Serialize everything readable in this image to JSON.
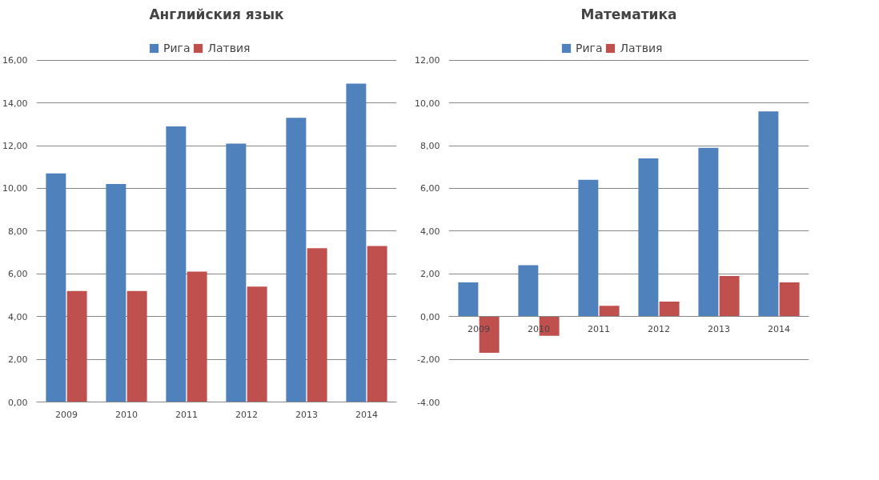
{
  "chart_data": [
    {
      "type": "bar",
      "title": "Английския язык",
      "categories": [
        "2009",
        "2010",
        "2011",
        "2012",
        "2013",
        "2014"
      ],
      "series": [
        {
          "name": "Рига",
          "color": "#4f81bd",
          "values": [
            10.7,
            10.2,
            12.9,
            12.1,
            13.3,
            14.9
          ]
        },
        {
          "name": "Латвия",
          "color": "#c0504d",
          "values": [
            5.2,
            5.2,
            6.1,
            5.4,
            7.2,
            7.3
          ]
        }
      ],
      "ylim": [
        0,
        16
      ],
      "yticks": [
        {
          "value": 0,
          "label": "0,00"
        },
        {
          "value": 2,
          "label": "2,00"
        },
        {
          "value": 4,
          "label": "4,00"
        },
        {
          "value": 6,
          "label": "6,00"
        },
        {
          "value": 8,
          "label": "8,00"
        },
        {
          "value": 10,
          "label": "10,00"
        },
        {
          "value": 12,
          "label": "12,00"
        },
        {
          "value": 14,
          "label": "14,00"
        },
        {
          "value": 16,
          "label": "16,00"
        }
      ],
      "grid": "y",
      "legend": "top"
    },
    {
      "type": "bar",
      "title": "Математика",
      "categories": [
        "2009",
        "2010",
        "2011",
        "2012",
        "2013",
        "2014"
      ],
      "series": [
        {
          "name": "Рига",
          "color": "#4f81bd",
          "values": [
            1.6,
            2.4,
            6.4,
            7.4,
            7.9,
            9.6
          ]
        },
        {
          "name": "Латвия",
          "color": "#c0504d",
          "values": [
            -1.7,
            -0.9,
            0.5,
            0.7,
            1.9,
            1.6
          ]
        }
      ],
      "ylim": [
        -4,
        12
      ],
      "yticks": [
        {
          "value": -4,
          "label": "-4,00"
        },
        {
          "value": -2,
          "label": "-2,00"
        },
        {
          "value": 0,
          "label": "0,00"
        },
        {
          "value": 2,
          "label": "2,00"
        },
        {
          "value": 4,
          "label": "4,00"
        },
        {
          "value": 6,
          "label": "6,00"
        },
        {
          "value": 8,
          "label": "8,00"
        },
        {
          "value": 10,
          "label": "10,00"
        },
        {
          "value": 12,
          "label": "12,00"
        }
      ],
      "grid": "y",
      "legend": "top"
    }
  ]
}
